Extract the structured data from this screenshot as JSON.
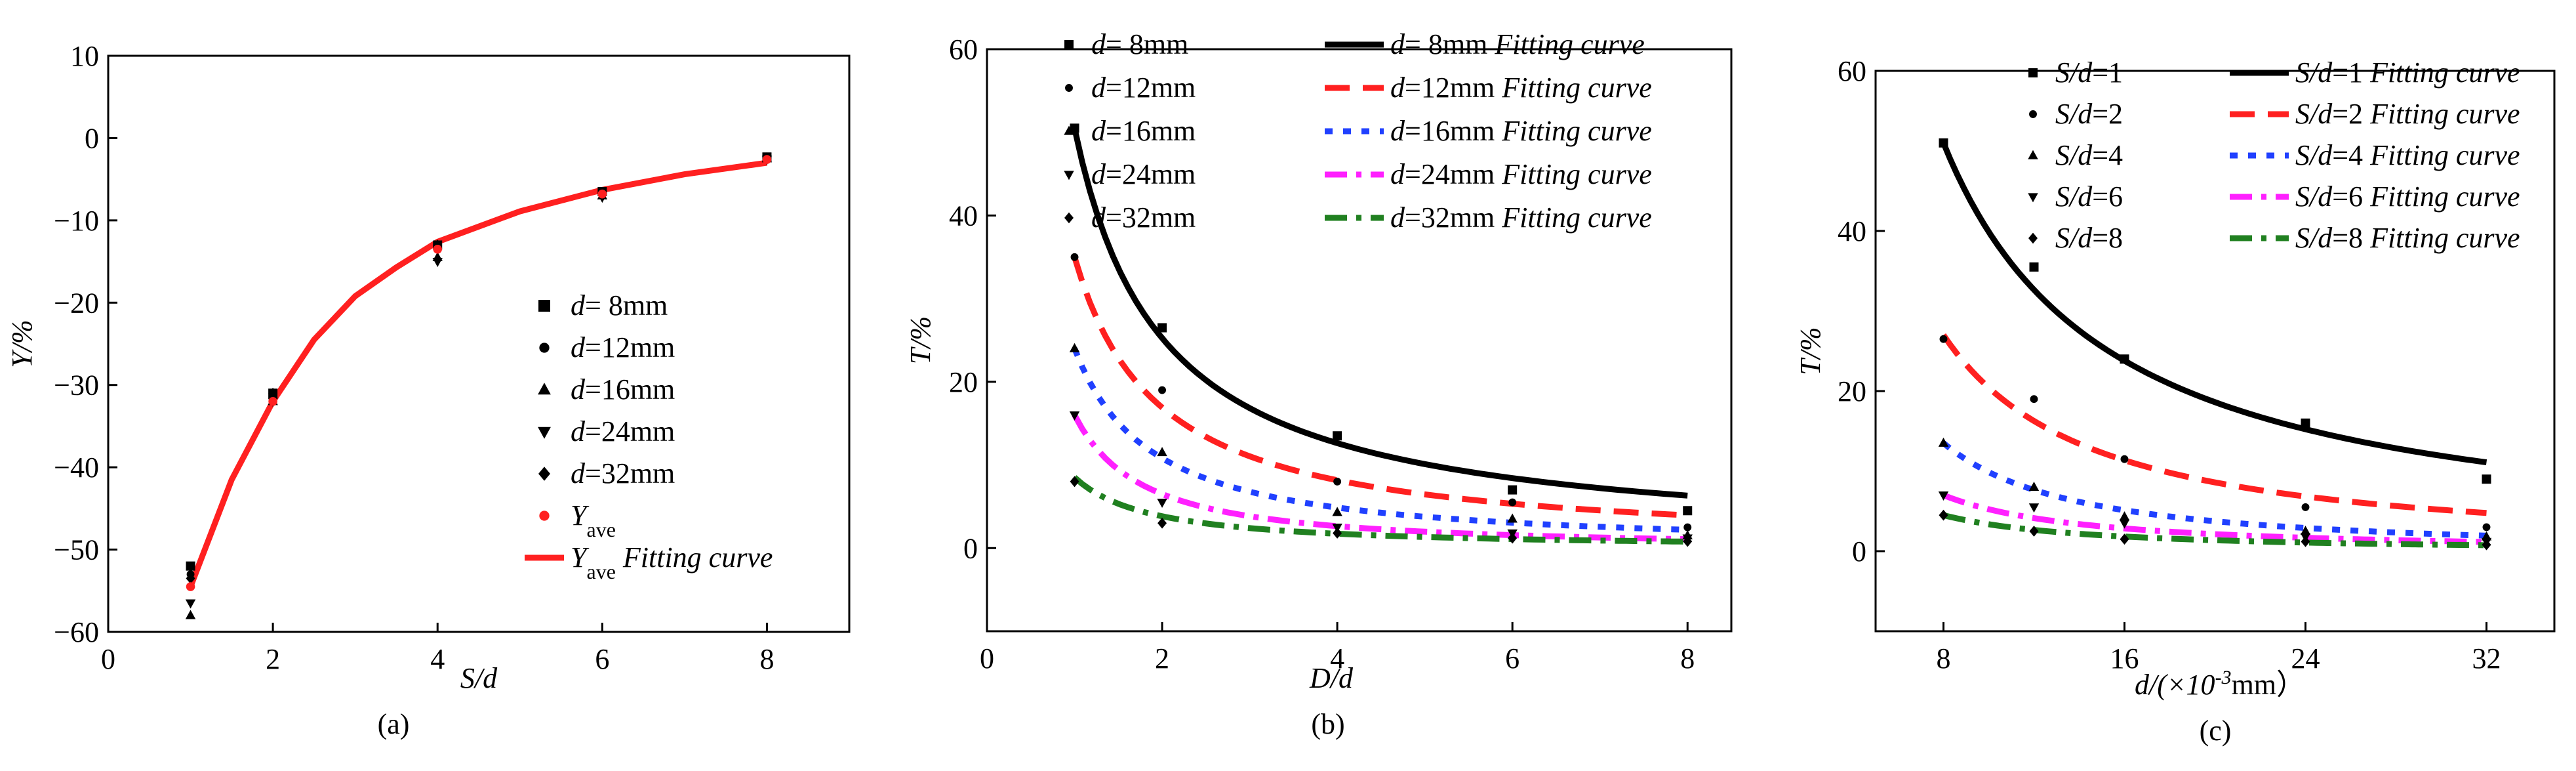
{
  "chart_data": [
    {
      "type": "scatter",
      "panel_label": "(a)",
      "xlabel": "S/d",
      "ylabel": "Y/%",
      "xlim": [
        0,
        9
      ],
      "ylim": [
        -60,
        10
      ],
      "xticks": [
        0,
        2,
        4,
        6,
        8
      ],
      "yticks": [
        10,
        0,
        -10,
        -20,
        -30,
        -40,
        -50,
        -60
      ],
      "x": [
        1,
        2,
        4,
        6,
        8
      ],
      "series": [
        {
          "name": "d= 8mm",
          "label": "d=  8mm",
          "marker": "square",
          "color": "#000000",
          "values": [
            -52,
            -31,
            -13,
            -6.5,
            -2.3
          ]
        },
        {
          "name": "d=12mm",
          "label": "d=12mm",
          "marker": "circle",
          "color": "#000000",
          "values": [
            -53,
            -31,
            -13.5,
            -6.7,
            -2.4
          ]
        },
        {
          "name": "d=16mm",
          "label": "d=16mm",
          "marker": "triangle",
          "color": "#000000",
          "values": [
            -58,
            -32,
            -14.5,
            -7,
            -2.5
          ]
        },
        {
          "name": "d=24mm",
          "label": "d=24mm",
          "marker": "tridown",
          "color": "#000000",
          "values": [
            -56.5,
            -32,
            -15,
            -7.2,
            -2.6
          ]
        },
        {
          "name": "d=32mm",
          "label": "d=32mm",
          "marker": "diamond",
          "color": "#000000",
          "values": [
            -53.5,
            -31,
            -13,
            -6.8,
            -2.4
          ]
        },
        {
          "name": "Yave",
          "label": "Y",
          "sub": "ave",
          "marker": "circle",
          "color": "#ff2020",
          "values": [
            -54.5,
            -32,
            -13.5,
            -6.8,
            -2.6
          ]
        }
      ],
      "fit_curves": [
        {
          "name": "Yave Fitting curve",
          "label": "Y",
          "sub": "ave",
          "suffix": " Fitting curve",
          "color": "#ff2020",
          "style": "solid",
          "x": [
            1,
            1.5,
            2,
            2.5,
            3,
            3.5,
            4,
            5,
            6,
            7,
            8
          ],
          "y": [
            -54.5,
            -41.5,
            -32,
            -24.5,
            -19.2,
            -15.7,
            -12.6,
            -8.9,
            -6.3,
            -4.4,
            -3.0
          ]
        }
      ]
    },
    {
      "type": "scatter",
      "panel_label": "(b)",
      "xlabel": "D/d",
      "ylabel": "T/%",
      "xlim": [
        0,
        8.5
      ],
      "ylim": [
        -10,
        60
      ],
      "xticks": [
        0,
        2,
        4,
        6,
        8
      ],
      "yticks": [
        0,
        20,
        40,
        60
      ],
      "x": [
        1,
        2,
        4,
        6,
        8
      ],
      "series": [
        {
          "name": "d= 8mm",
          "label": "d=  8mm",
          "marker": "square",
          "color": "#000000",
          "values": [
            50.5,
            26.5,
            13.5,
            7,
            4.5
          ]
        },
        {
          "name": "d=12mm",
          "label": "d=12mm",
          "marker": "circle",
          "color": "#000000",
          "values": [
            35,
            19,
            8,
            5.5,
            2.5
          ]
        },
        {
          "name": "d=16mm",
          "label": "d=16mm",
          "marker": "triangle",
          "color": "#000000",
          "values": [
            24,
            11.5,
            4.3,
            3.5,
            1.5
          ]
        },
        {
          "name": "d=24mm",
          "label": "d=24mm",
          "marker": "tridown",
          "color": "#000000",
          "values": [
            16,
            5.5,
            2.5,
            1.8,
            1.2
          ]
        },
        {
          "name": "d=32mm",
          "label": "d=32mm",
          "marker": "diamond",
          "color": "#000000",
          "values": [
            8,
            3,
            1.8,
            1.2,
            0.8
          ]
        }
      ],
      "fit_curves": [
        {
          "name": "d= 8mm Fitting curve",
          "label": "d=  8mm",
          "suffix": " Fitting curve",
          "color": "#000000",
          "style": "solid",
          "a": 50.5,
          "b": 1.0
        },
        {
          "name": "d=12mm Fitting curve",
          "label": "d=12mm",
          "suffix": " Fitting curve",
          "color": "#ff2020",
          "style": "dash",
          "a": 35,
          "b": 1.05
        },
        {
          "name": "d=16mm Fitting curve",
          "label": "d=16mm",
          "suffix": " Fitting curve",
          "color": "#2040ff",
          "style": "dot",
          "a": 24,
          "b": 1.15
        },
        {
          "name": "d=24mm Fitting curve",
          "label": "d=24mm",
          "suffix": " Fitting curve",
          "color": "#ff20ff",
          "style": "dashdot",
          "a": 16,
          "b": 1.3
        },
        {
          "name": "d=32mm Fitting curve",
          "label": "d=32mm",
          "suffix": " Fitting curve",
          "color": "#208020",
          "style": "dashdot",
          "a": 8.5,
          "b": 1.15
        }
      ]
    },
    {
      "type": "scatter",
      "panel_label": "(c)",
      "xlabel": "d/(×10",
      "xlabel_sup": "-3",
      "xlabel_end": "mm）",
      "ylabel": "T/%",
      "xlim": [
        5,
        35
      ],
      "ylim": [
        -10,
        60
      ],
      "xticks": [
        8,
        16,
        24,
        32
      ],
      "yticks": [
        0,
        20,
        40,
        60
      ],
      "x": [
        8,
        12,
        16,
        24,
        32
      ],
      "series": [
        {
          "name": "S/d=1",
          "label": "S/d=1",
          "marker": "square",
          "color": "#000000",
          "values": [
            51,
            35.5,
            24,
            16,
            9
          ]
        },
        {
          "name": "S/d=2",
          "label": "S/d=2",
          "marker": "circle",
          "color": "#000000",
          "values": [
            26.5,
            19,
            11.5,
            5.5,
            3
          ]
        },
        {
          "name": "S/d=4",
          "label": "S/d=4",
          "marker": "triangle",
          "color": "#000000",
          "values": [
            13.5,
            8,
            4.3,
            2.5,
            1.8
          ]
        },
        {
          "name": "S/d=6",
          "label": "S/d=6",
          "marker": "tridown",
          "color": "#000000",
          "values": [
            7,
            5.5,
            3.5,
            1.8,
            1.2
          ]
        },
        {
          "name": "S/d=8",
          "label": "S/d=8",
          "marker": "diamond",
          "color": "#000000",
          "values": [
            4.5,
            2.5,
            1.5,
            1.2,
            0.8
          ]
        }
      ],
      "fit_curves": [
        {
          "name": "S/d=1 Fitting curve",
          "label": "S/d=1",
          "suffix": " Fitting curve",
          "color": "#000000",
          "style": "solid",
          "a": 51,
          "b": 1.1,
          "ref": 8
        },
        {
          "name": "S/d=2 Fitting curve",
          "label": "S/d=2",
          "suffix": " Fitting curve",
          "color": "#ff2020",
          "style": "dash",
          "a": 27,
          "b": 1.25,
          "ref": 8
        },
        {
          "name": "S/d=4 Fitting curve",
          "label": "S/d=4",
          "suffix": " Fitting curve",
          "color": "#2040ff",
          "style": "dot",
          "a": 13.5,
          "b": 1.4,
          "ref": 8
        },
        {
          "name": "S/d=6 Fitting curve",
          "label": "S/d=6",
          "suffix": " Fitting curve",
          "color": "#ff20ff",
          "style": "dashdot",
          "a": 7,
          "b": 1.3,
          "ref": 8
        },
        {
          "name": "S/d=8 Fitting curve",
          "label": "S/d=8",
          "suffix": " Fitting curve",
          "color": "#208020",
          "style": "dashdot",
          "a": 4.5,
          "b": 1.3,
          "ref": 8
        }
      ]
    }
  ]
}
